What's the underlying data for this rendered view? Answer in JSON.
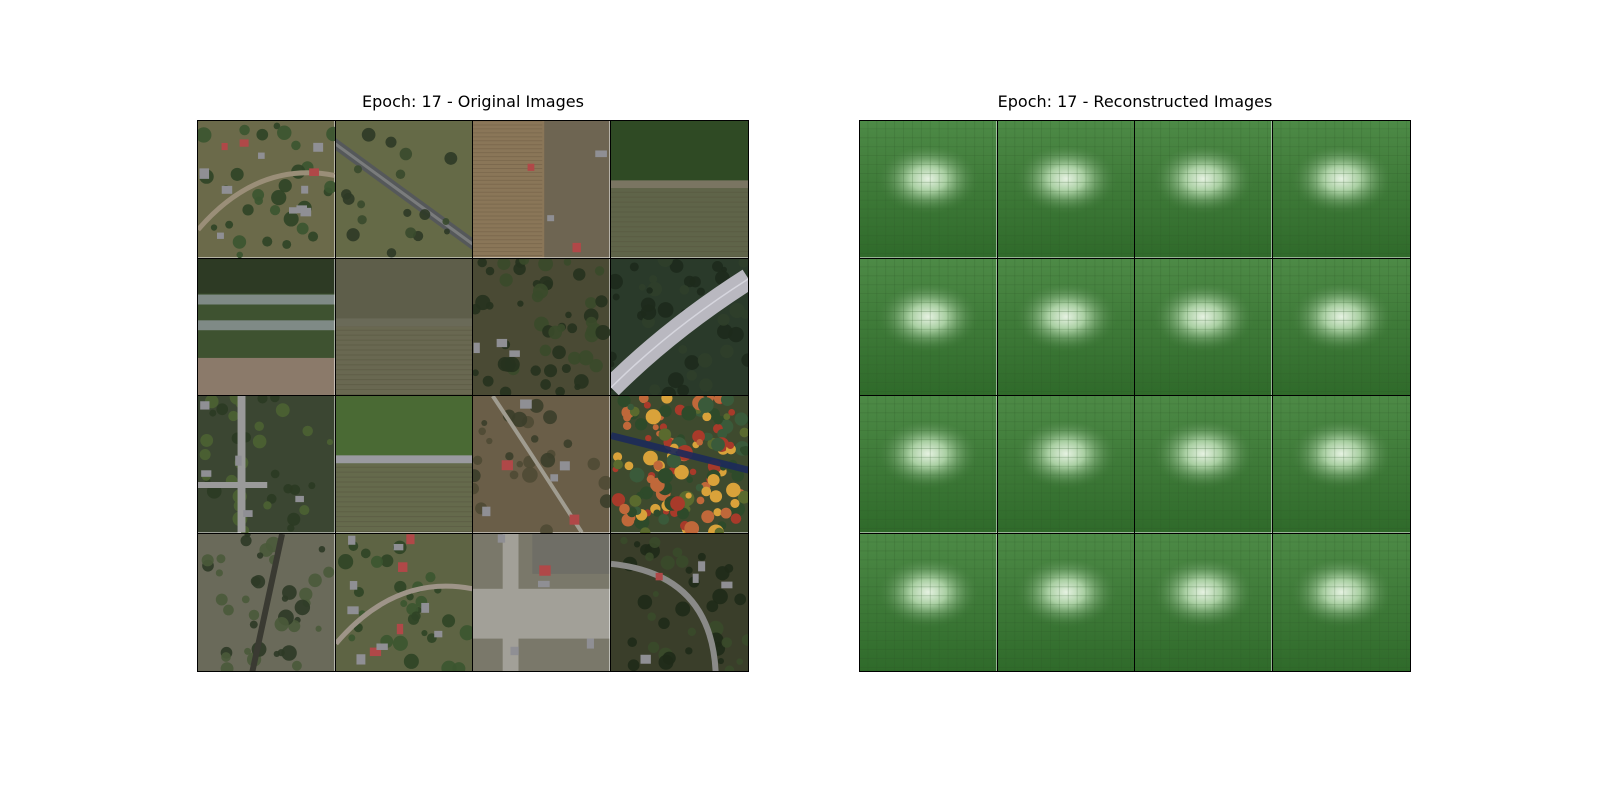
{
  "panels": {
    "original": {
      "title": "Epoch: 17 - Original Images",
      "tiles": [
        {
          "kind": "suburb",
          "ground": "#6b6a4a",
          "accent": "#9a8e78"
        },
        {
          "kind": "highway-diagonal",
          "ground": "#5d6442",
          "accent": "#4a5540"
        },
        {
          "kind": "field-plowed",
          "ground": "#8a7658",
          "accent": "#6f5e45"
        },
        {
          "kind": "field-road",
          "ground": "#2f4a24",
          "accent": "#7a7562"
        },
        {
          "kind": "highway-horizontal",
          "ground": "#3e5230",
          "accent": "#8b7a6a"
        },
        {
          "kind": "field-road",
          "ground": "#5e5e4a",
          "accent": "#6a6a58"
        },
        {
          "kind": "forest-clearing",
          "ground": "#4a4a34",
          "accent": "#7a7058"
        },
        {
          "kind": "highway-curve",
          "ground": "#2a3a2a",
          "accent": "#b9b8c0"
        },
        {
          "kind": "suburb-trees",
          "ground": "#3b4632",
          "accent": "#9a9a9a"
        },
        {
          "kind": "field-road",
          "ground": "#4a6a34",
          "accent": "#9a9aa0"
        },
        {
          "kind": "dry-lots",
          "ground": "#6a5e48",
          "accent": "#8a7a60"
        },
        {
          "kind": "autumn-forest",
          "ground": "#3e4a2e",
          "accent": "#c0683a"
        },
        {
          "kind": "rail-scrub",
          "ground": "#6a6a5a",
          "accent": "#3a3a32"
        },
        {
          "kind": "suburb",
          "ground": "#5e6444",
          "accent": "#9e9488"
        },
        {
          "kind": "intersection",
          "ground": "#7a786a",
          "accent": "#a2a098"
        },
        {
          "kind": "curve-road",
          "ground": "#3a3e2a",
          "accent": "#8a8a88"
        }
      ]
    },
    "reconstructed": {
      "title": "Epoch: 17 - Reconstructed Images",
      "tile_count": 16,
      "base_color": "#427a3c",
      "glow_color": "#e6f2e2"
    }
  }
}
